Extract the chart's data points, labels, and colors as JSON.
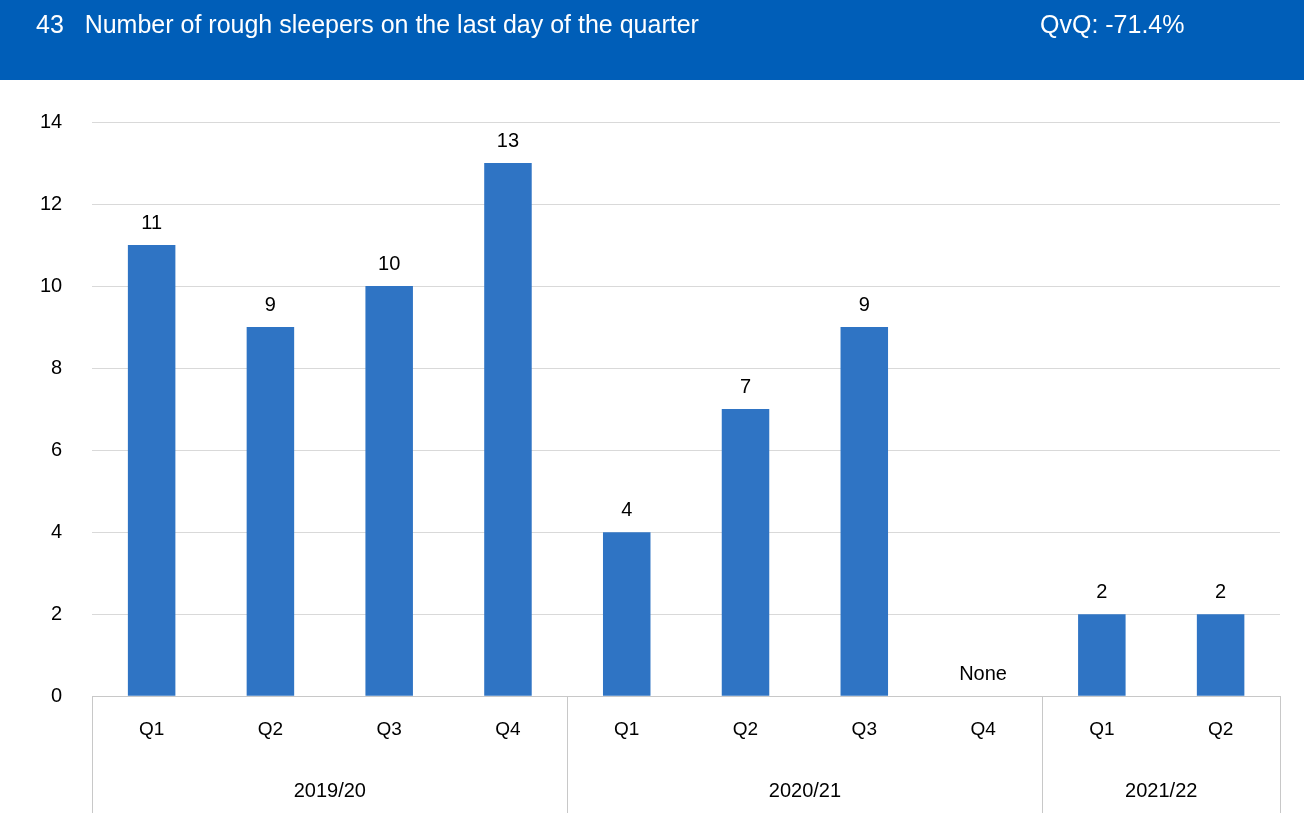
{
  "chart_data": {
    "type": "bar",
    "title": "43   Number of rough sleepers on the last day of the quarter",
    "subtitle": "QvQ: -71.4%",
    "categories": [
      "Q1",
      "Q2",
      "Q3",
      "Q4",
      "Q1",
      "Q2",
      "Q3",
      "Q4",
      "Q1",
      "Q2"
    ],
    "values": [
      11,
      9,
      10,
      13,
      4,
      7,
      9,
      null,
      2,
      2
    ],
    "value_labels": [
      "11",
      "9",
      "10",
      "13",
      "4",
      "7",
      "9",
      "None",
      "2",
      "2"
    ],
    "color": "#2f74c4",
    "annotations": [
      "2019/20",
      "2020/21",
      "2021/22"
    ],
    "ylim": [
      0,
      14
    ],
    "yticks": [
      0,
      2,
      4,
      6,
      8,
      10,
      12,
      14
    ],
    "grid": "y",
    "legend": false
  }
}
